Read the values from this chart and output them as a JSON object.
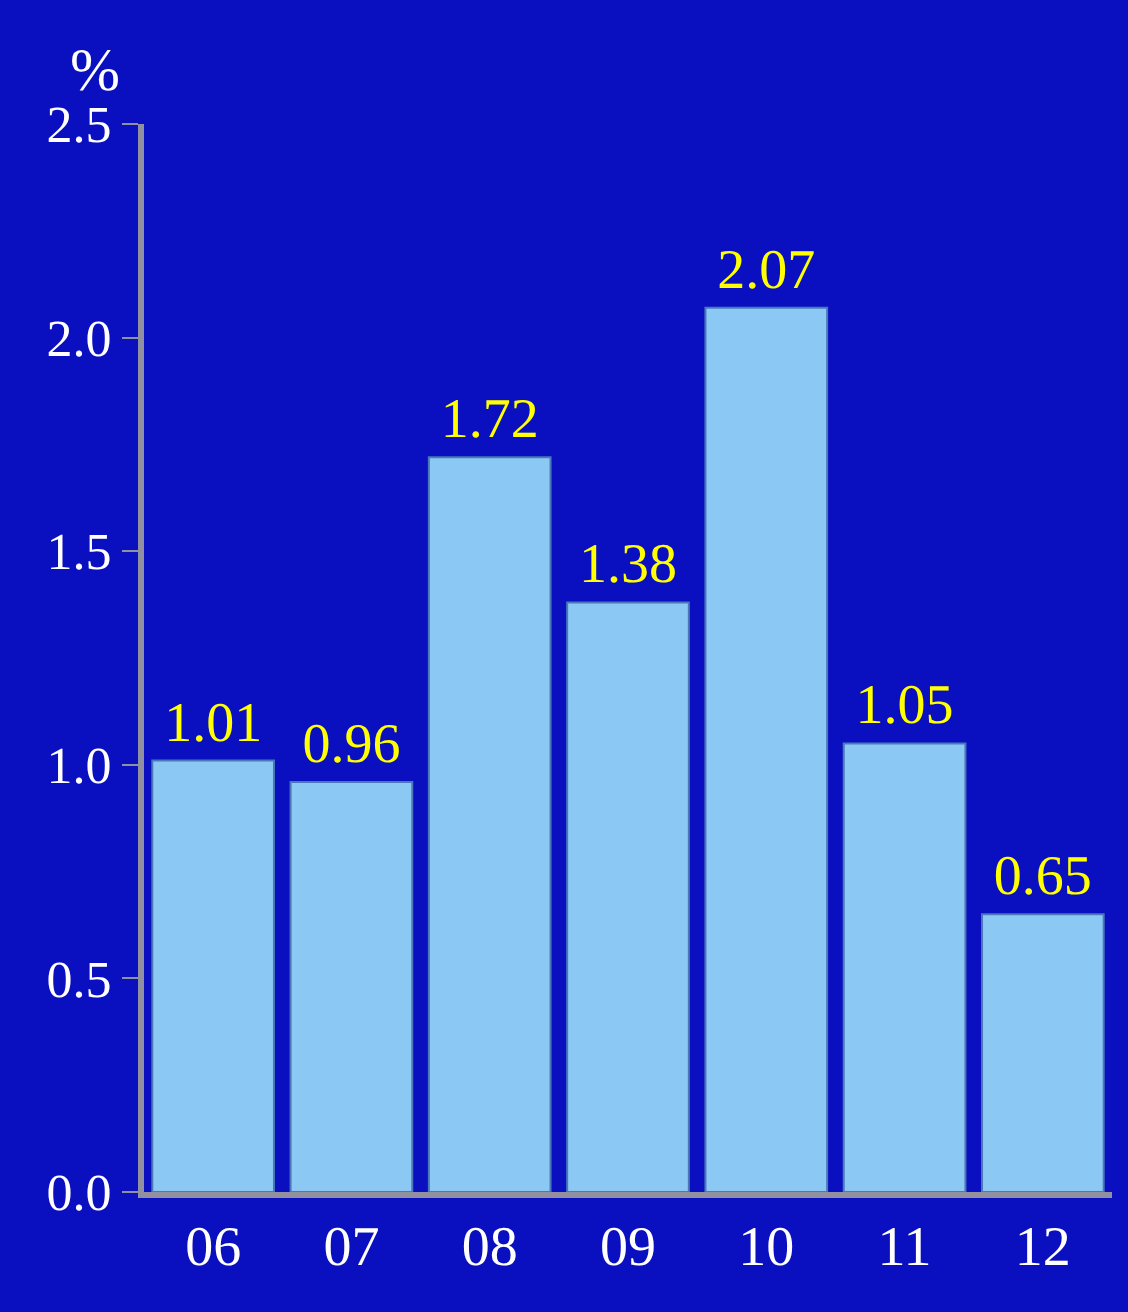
{
  "chart_data": {
    "type": "bar",
    "ylabel": "%",
    "categories": [
      "06",
      "07",
      "08",
      "09",
      "10",
      "11",
      "12"
    ],
    "values": [
      1.01,
      0.96,
      1.72,
      1.38,
      2.07,
      1.05,
      0.65
    ],
    "color": "#8cc8f4",
    "ylim": [
      0,
      2.5
    ],
    "yticks": [
      {
        "value": 0,
        "label": "0.0"
      },
      {
        "value": 0.5,
        "label": "0.5"
      },
      {
        "value": 1,
        "label": "1.0"
      },
      {
        "value": 1.5,
        "label": "1.5"
      },
      {
        "value": 2,
        "label": "2.0"
      },
      {
        "value": 2.5,
        "label": "2.5"
      }
    ],
    "data_labels": true,
    "grid": false,
    "legend": false
  }
}
